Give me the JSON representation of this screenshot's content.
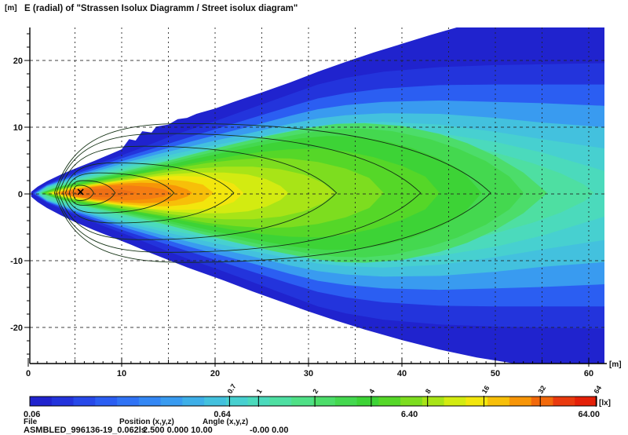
{
  "chart_data": {
    "type": "contour",
    "subtype": "isolux-illuminance-map",
    "title": "E (radial) of \"Strassen Isolux Diagramm / Street isolux diagram\"",
    "y_unit_label": "[m]",
    "x_unit_label": "[m]",
    "x_axis": {
      "ticks": [
        0,
        10,
        20,
        30,
        40,
        50,
        60
      ],
      "minor_step": 1,
      "medium_step": 5,
      "range_m": [
        0,
        61.5
      ]
    },
    "y_axis": {
      "ticks": [
        20,
        10,
        0,
        -10,
        -20
      ],
      "tick_labels": [
        "20",
        "10",
        "0",
        "-10",
        "-20"
      ],
      "minor_step": 2,
      "range_m": [
        -25.4,
        24.9
      ]
    },
    "grid": {
      "vertical_step_m": 5,
      "horizontal_step_m": 10,
      "style": "dashed"
    },
    "colorbar": {
      "unit_label": "[lx]",
      "scale": "logarithmic",
      "min_lx": 0.06,
      "max_lx": 64.0,
      "bottom_labels": [
        "0.06",
        "0.64",
        "6.40",
        "64.00"
      ],
      "tick_levels_lx": [
        "0.7",
        "1",
        "2",
        "4",
        "8",
        "16",
        "32",
        "64"
      ],
      "palette": [
        "#2023ce",
        "#2334dc",
        "#2749e9",
        "#2b5ef2",
        "#3073f5",
        "#3487f4",
        "#399bf0",
        "#3eafe8",
        "#43c1de",
        "#47d0d0",
        "#4bdabc",
        "#4edfa2",
        "#4fe086",
        "#4cdd6a",
        "#44d84f",
        "#3dd336",
        "#55d728",
        "#7ddd1f",
        "#a8e417",
        "#d3eb11",
        "#f2e60d",
        "#f7bf09",
        "#f79507",
        "#f2690b",
        "#e93a0e",
        "#e42008"
      ]
    },
    "contour_lines": {
      "levels_lx": [
        0.7,
        1,
        2,
        4,
        8,
        16,
        32
      ],
      "color": "#143214"
    },
    "max_region_lx": "~40 (orange core, no red region reached on plot)",
    "luminaire_marker": {
      "symbol": "x",
      "x_m": 5.6,
      "y_m": 0.3
    }
  },
  "footer": {
    "file_label": "File",
    "position_label": "Position (x,y,z)",
    "angle_label": "Angle (x,y,z)",
    "file_value": "ASMBLED_996136-19_0.062ls",
    "position_value": "2.500   0.000   10.00",
    "angle_value": "-0.00   0.00"
  }
}
